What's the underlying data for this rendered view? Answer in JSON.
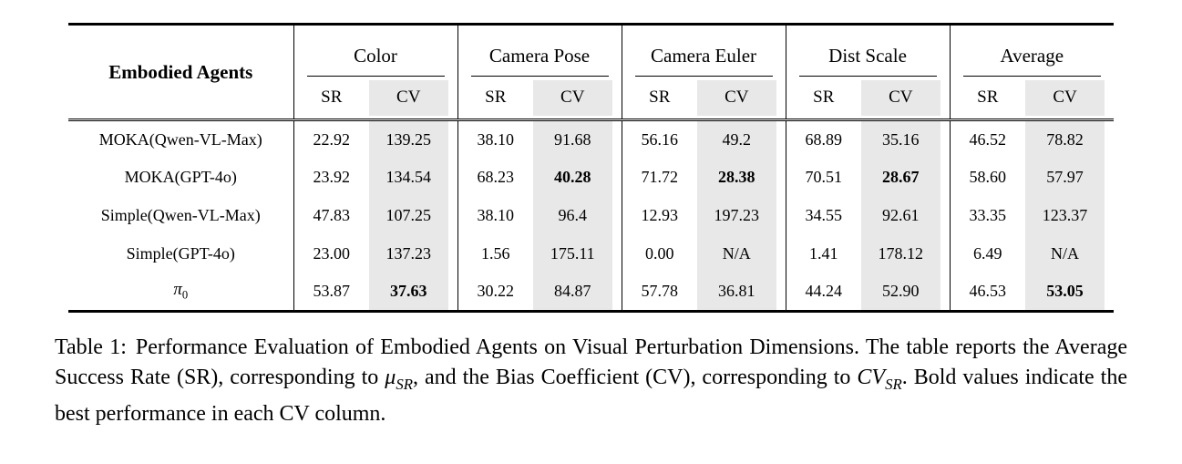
{
  "colors": {
    "cv_shade": "#e8e8e8",
    "rule": "#000000"
  },
  "table": {
    "row_header": "Embodied Agents",
    "groups": [
      "Color",
      "Camera Pose",
      "Camera Euler",
      "Dist Scale",
      "Average"
    ],
    "subheaders": {
      "sr": "SR",
      "cv": "CV"
    },
    "rows": [
      {
        "agent": "MOKA(Qwen-VL-Max)",
        "values": [
          "22.92",
          "139.25",
          "38.10",
          "91.68",
          "56.16",
          "49.2",
          "68.89",
          "35.16",
          "46.52",
          "78.82"
        ]
      },
      {
        "agent": "MOKA(GPT-4o)",
        "values": [
          "23.92",
          "134.54",
          "68.23",
          "40.28",
          "71.72",
          "28.38",
          "70.51",
          "28.67",
          "58.60",
          "57.97"
        ]
      },
      {
        "agent": "Simple(Qwen-VL-Max)",
        "values": [
          "47.83",
          "107.25",
          "38.10",
          "96.4",
          "12.93",
          "197.23",
          "34.55",
          "92.61",
          "33.35",
          "123.37"
        ]
      },
      {
        "agent": "Simple(GPT-4o)",
        "values": [
          "23.00",
          "137.23",
          "1.56",
          "175.11",
          "0.00",
          "N/A",
          "1.41",
          "178.12",
          "6.49",
          "N/A"
        ]
      },
      {
        "agent": "π",
        "agent_sub": "0",
        "values": [
          "53.87",
          "37.63",
          "30.22",
          "84.87",
          "57.78",
          "36.81",
          "44.24",
          "52.90",
          "46.53",
          "53.05"
        ]
      }
    ]
  },
  "caption": {
    "label": "Table 1:",
    "text_1": "Performance Evaluation of Embodied Agents on Visual Perturbation Dimensions. The table reports the Average Success Rate (SR), corresponding to ",
    "mu": "μ",
    "mu_sub": "SR",
    "text_2": ", and the Bias Coefficient (CV), corresponding to ",
    "cv": "CV",
    "cv_sub": "SR",
    "text_3": ". Bold values indicate the best performance in each CV column."
  }
}
